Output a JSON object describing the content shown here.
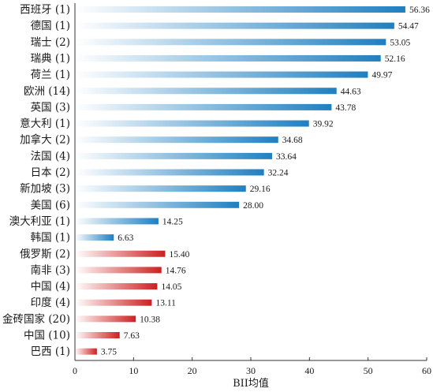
{
  "chart_data": {
    "type": "bar",
    "orientation": "horizontal",
    "categories": [
      "西班牙 (1)",
      "德国 (1)",
      "瑞士 (2)",
      "瑞典 (1)",
      "荷兰 (1)",
      "欧洲 (14)",
      "英国 (3)",
      "意大利 (1)",
      "加拿大 (2)",
      "法国 (4)",
      "日本 (2)",
      "新加坡 (3)",
      "美国 (6)",
      "澳大利亚 (1)",
      "韩国 (1)",
      "俄罗斯 (2)",
      "南非 (3)",
      "中国 (4)",
      "印度 (4)",
      "金砖国家 (20)",
      "中国 (10)",
      "巴西 (1)"
    ],
    "values": [
      56.36,
      54.47,
      53.05,
      52.16,
      49.97,
      44.63,
      43.78,
      39.92,
      34.68,
      33.64,
      32.24,
      29.16,
      28.0,
      14.25,
      6.63,
      15.4,
      14.76,
      14.05,
      13.11,
      10.38,
      7.63,
      3.75
    ],
    "value_labels": [
      "56.36",
      "54.47",
      "53.05",
      "52.16",
      "49.97",
      "44.63",
      "43.78",
      "39.92",
      "34.68",
      "33.64",
      "32.24",
      "29.16",
      "28.00",
      "14.25",
      "6.63",
      "15.40",
      "14.76",
      "14.05",
      "13.11",
      "10.38",
      "7.63",
      "3.75"
    ],
    "bar_colors": [
      "blue",
      "blue",
      "blue",
      "blue",
      "blue",
      "blue",
      "blue",
      "blue",
      "blue",
      "blue",
      "blue",
      "blue",
      "blue",
      "blue",
      "blue",
      "red",
      "red",
      "red",
      "red",
      "red",
      "red",
      "red"
    ],
    "colors": {
      "blue": "#1f7fc0",
      "red": "#cc2020"
    },
    "xlabel": "BII均值",
    "ylabel": "",
    "xlim": [
      0,
      60
    ],
    "xticks": [
      "0",
      "10",
      "20",
      "30",
      "40",
      "50",
      "60"
    ],
    "xtick_values": [
      0,
      10,
      20,
      30,
      40,
      50,
      60
    ],
    "grid": false,
    "legend": "none"
  }
}
